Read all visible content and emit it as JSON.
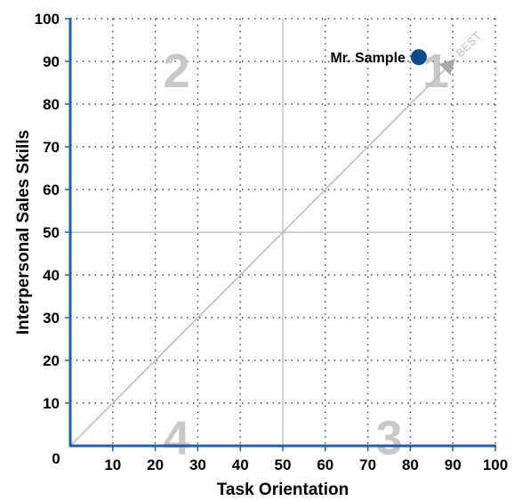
{
  "chart_data": {
    "type": "scatter",
    "xlabel": "Task Orientation",
    "ylabel": "Interpersonal Sales Skills",
    "xlim": [
      0,
      100
    ],
    "ylim": [
      0,
      100
    ],
    "x_ticks": [
      "10",
      "20",
      "30",
      "40",
      "50",
      "60",
      "70",
      "80",
      "90",
      "100"
    ],
    "y_ticks": [
      "10",
      "20",
      "30",
      "40",
      "50",
      "60",
      "70",
      "80",
      "90",
      "100"
    ],
    "origin_label": "0",
    "grid": true,
    "grid_style": "dotted",
    "quadrant_dividers": {
      "x": 50,
      "y": 50
    },
    "quadrant_labels": [
      {
        "text": "1",
        "quadrant": "top-right"
      },
      {
        "text": "2",
        "quadrant": "top-left"
      },
      {
        "text": "3",
        "quadrant": "bottom-right"
      },
      {
        "text": "4",
        "quadrant": "bottom-left"
      }
    ],
    "diagonal": {
      "from": [
        0,
        0
      ],
      "to": [
        90,
        90
      ],
      "label": "BEST"
    },
    "points": [
      {
        "label": "Mr. Sample",
        "x": 82,
        "y": 91
      }
    ],
    "colors": {
      "point": "#0a4a8c",
      "axis": "#1f5fa8",
      "grid": "#333333",
      "divider": "#c0c0c0",
      "quadrant_label": "#c8c8c8"
    }
  }
}
